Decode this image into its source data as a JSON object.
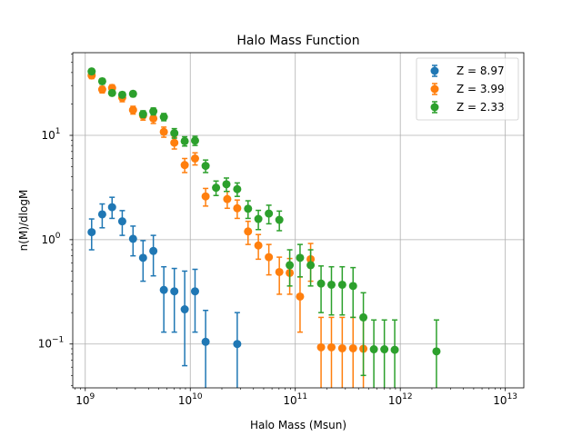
{
  "chart_data": {
    "type": "scatter",
    "title": "Halo Mass Function",
    "xlabel": "Halo Mass (Msun)",
    "ylabel": "n(M)/dlogM",
    "xscale": "log",
    "yscale": "log",
    "xlim": [
      760000000.0,
      15000000000000.0
    ],
    "ylim": [
      0.038,
      62
    ],
    "x_ticks": [
      {
        "value": 1000000000.0,
        "base": "10",
        "exp": "9"
      },
      {
        "value": 10000000000.0,
        "base": "10",
        "exp": "10"
      },
      {
        "value": 100000000000.0,
        "base": "10",
        "exp": "11"
      },
      {
        "value": 1000000000000.0,
        "base": "10",
        "exp": "12"
      },
      {
        "value": 10000000000000.0,
        "base": "10",
        "exp": "13"
      }
    ],
    "y_ticks": [
      {
        "value": 0.1,
        "base": "10",
        "exp": "−1"
      },
      {
        "value": 1,
        "base": "10",
        "exp": "0"
      },
      {
        "value": 10,
        "base": "10",
        "exp": "1"
      }
    ],
    "grid": true,
    "legend_position": "top-right",
    "series": [
      {
        "name": "Z = 8.97",
        "color": "#1f77b4",
        "points": [
          {
            "x": 1150000000.0,
            "y": 1.18,
            "lo": 0.8,
            "hi": 1.58
          },
          {
            "x": 1450000000.0,
            "y": 1.75,
            "lo": 1.3,
            "hi": 2.2
          },
          {
            "x": 1800000000.0,
            "y": 2.05,
            "lo": 1.6,
            "hi": 2.55
          },
          {
            "x": 2250000000.0,
            "y": 1.5,
            "lo": 1.1,
            "hi": 1.9
          },
          {
            "x": 2850000000.0,
            "y": 1.02,
            "lo": 0.7,
            "hi": 1.35
          },
          {
            "x": 3550000000.0,
            "y": 0.67,
            "lo": 0.4,
            "hi": 0.98
          },
          {
            "x": 4450000000.0,
            "y": 0.78,
            "lo": 0.45,
            "hi": 1.1
          },
          {
            "x": 5600000000.0,
            "y": 0.33,
            "lo": 0.13,
            "hi": 0.55
          },
          {
            "x": 7050000000.0,
            "y": 0.32,
            "lo": 0.13,
            "hi": 0.53
          },
          {
            "x": 8850000000.0,
            "y": 0.215,
            "lo": 0.062,
            "hi": 0.5
          },
          {
            "x": 11100000000.0,
            "y": 0.32,
            "lo": 0.13,
            "hi": 0.52
          },
          {
            "x": 14000000000.0,
            "y": 0.105,
            "lo": 0.02,
            "hi": 0.21
          },
          {
            "x": 28000000000.0,
            "y": 0.1,
            "lo": 0.02,
            "hi": 0.2
          }
        ]
      },
      {
        "name": "Z = 3.99",
        "color": "#ff7f0e",
        "points": [
          {
            "x": 1150000000.0,
            "y": 37.5,
            "lo": 35.0,
            "hi": 40.0
          },
          {
            "x": 1450000000.0,
            "y": 27.5,
            "lo": 25.5,
            "hi": 29.5
          },
          {
            "x": 1800000000.0,
            "y": 28.5,
            "lo": 26.5,
            "hi": 30.5
          },
          {
            "x": 2250000000.0,
            "y": 23.0,
            "lo": 21.0,
            "hi": 25.0
          },
          {
            "x": 2850000000.0,
            "y": 17.5,
            "lo": 16.0,
            "hi": 19.0
          },
          {
            "x": 3550000000.0,
            "y": 15.5,
            "lo": 14.0,
            "hi": 17.0
          },
          {
            "x": 4450000000.0,
            "y": 14.5,
            "lo": 13.0,
            "hi": 16.0
          },
          {
            "x": 5600000000.0,
            "y": 10.8,
            "lo": 9.6,
            "hi": 12.0
          },
          {
            "x": 7050000000.0,
            "y": 8.5,
            "lo": 7.4,
            "hi": 9.6
          },
          {
            "x": 8850000000.0,
            "y": 5.2,
            "lo": 4.4,
            "hi": 6.0
          },
          {
            "x": 11100000000.0,
            "y": 6.0,
            "lo": 5.2,
            "hi": 6.8
          },
          {
            "x": 14000000000.0,
            "y": 2.6,
            "lo": 2.1,
            "hi": 3.1
          },
          {
            "x": 22500000000.0,
            "y": 2.45,
            "lo": 2.0,
            "hi": 2.9
          },
          {
            "x": 28000000000.0,
            "y": 2.0,
            "lo": 1.6,
            "hi": 2.4
          },
          {
            "x": 35500000000.0,
            "y": 1.2,
            "lo": 0.9,
            "hi": 1.5
          },
          {
            "x": 44500000000.0,
            "y": 0.88,
            "lo": 0.65,
            "hi": 1.12
          },
          {
            "x": 56000000000.0,
            "y": 0.68,
            "lo": 0.46,
            "hi": 0.9
          },
          {
            "x": 70500000000.0,
            "y": 0.49,
            "lo": 0.3,
            "hi": 0.68
          },
          {
            "x": 88500000000.0,
            "y": 0.48,
            "lo": 0.3,
            "hi": 0.66
          },
          {
            "x": 111000000000.0,
            "y": 0.285,
            "lo": 0.13,
            "hi": 0.44
          },
          {
            "x": 140000000000.0,
            "y": 0.65,
            "lo": 0.4,
            "hi": 0.92
          },
          {
            "x": 176000000000.0,
            "y": 0.093,
            "lo": 0.02,
            "hi": 0.18
          },
          {
            "x": 221000000000.0,
            "y": 0.093,
            "lo": 0.02,
            "hi": 0.18
          },
          {
            "x": 280000000000.0,
            "y": 0.091,
            "lo": 0.02,
            "hi": 0.18
          },
          {
            "x": 355000000000.0,
            "y": 0.091,
            "lo": 0.02,
            "hi": 0.18
          },
          {
            "x": 445000000000.0,
            "y": 0.09,
            "lo": 0.02,
            "hi": 0.18
          }
        ]
      },
      {
        "name": "Z = 2.33",
        "color": "#2ca02c",
        "points": [
          {
            "x": 1150000000.0,
            "y": 41.0,
            "lo": 38.5,
            "hi": 43.5
          },
          {
            "x": 1450000000.0,
            "y": 33.0,
            "lo": 31.0,
            "hi": 35.0
          },
          {
            "x": 1800000000.0,
            "y": 25.5,
            "lo": 24.0,
            "hi": 27.0
          },
          {
            "x": 2250000000.0,
            "y": 24.5,
            "lo": 23.0,
            "hi": 26.0
          },
          {
            "x": 2850000000.0,
            "y": 25.0,
            "lo": 23.5,
            "hi": 26.5
          },
          {
            "x": 3550000000.0,
            "y": 16.0,
            "lo": 14.8,
            "hi": 17.2
          },
          {
            "x": 4450000000.0,
            "y": 17.0,
            "lo": 15.7,
            "hi": 18.3
          },
          {
            "x": 5600000000.0,
            "y": 15.0,
            "lo": 13.8,
            "hi": 16.2
          },
          {
            "x": 7050000000.0,
            "y": 10.5,
            "lo": 9.4,
            "hi": 11.6
          },
          {
            "x": 8850000000.0,
            "y": 8.8,
            "lo": 7.9,
            "hi": 9.7
          },
          {
            "x": 11100000000.0,
            "y": 8.9,
            "lo": 8.0,
            "hi": 9.8
          },
          {
            "x": 14000000000.0,
            "y": 5.1,
            "lo": 4.4,
            "hi": 5.8
          },
          {
            "x": 17600000000.0,
            "y": 3.15,
            "lo": 2.65,
            "hi": 3.65
          },
          {
            "x": 22100000000.0,
            "y": 3.4,
            "lo": 2.9,
            "hi": 3.9
          },
          {
            "x": 28000000000.0,
            "y": 3.05,
            "lo": 2.6,
            "hi": 3.5
          },
          {
            "x": 35500000000.0,
            "y": 1.98,
            "lo": 1.6,
            "hi": 2.36
          },
          {
            "x": 44500000000.0,
            "y": 1.58,
            "lo": 1.25,
            "hi": 1.91
          },
          {
            "x": 56000000000.0,
            "y": 1.78,
            "lo": 1.42,
            "hi": 2.14
          },
          {
            "x": 70500000000.0,
            "y": 1.55,
            "lo": 1.22,
            "hi": 1.88
          },
          {
            "x": 88500000000.0,
            "y": 0.57,
            "lo": 0.36,
            "hi": 0.8
          },
          {
            "x": 111000000000.0,
            "y": 0.67,
            "lo": 0.44,
            "hi": 0.9
          },
          {
            "x": 140000000000.0,
            "y": 0.57,
            "lo": 0.36,
            "hi": 0.8
          },
          {
            "x": 176000000000.0,
            "y": 0.38,
            "lo": 0.2,
            "hi": 0.56
          },
          {
            "x": 221000000000.0,
            "y": 0.37,
            "lo": 0.19,
            "hi": 0.55
          },
          {
            "x": 280000000000.0,
            "y": 0.37,
            "lo": 0.19,
            "hi": 0.55
          },
          {
            "x": 355000000000.0,
            "y": 0.36,
            "lo": 0.18,
            "hi": 0.54
          },
          {
            "x": 445000000000.0,
            "y": 0.18,
            "lo": 0.05,
            "hi": 0.31
          },
          {
            "x": 560000000000.0,
            "y": 0.089,
            "lo": 0.02,
            "hi": 0.17
          },
          {
            "x": 705000000000.0,
            "y": 0.089,
            "lo": 0.02,
            "hi": 0.17
          },
          {
            "x": 885000000000.0,
            "y": 0.088,
            "lo": 0.02,
            "hi": 0.17
          },
          {
            "x": 2210000000000.0,
            "y": 0.085,
            "lo": 0.02,
            "hi": 0.17
          }
        ]
      }
    ]
  }
}
